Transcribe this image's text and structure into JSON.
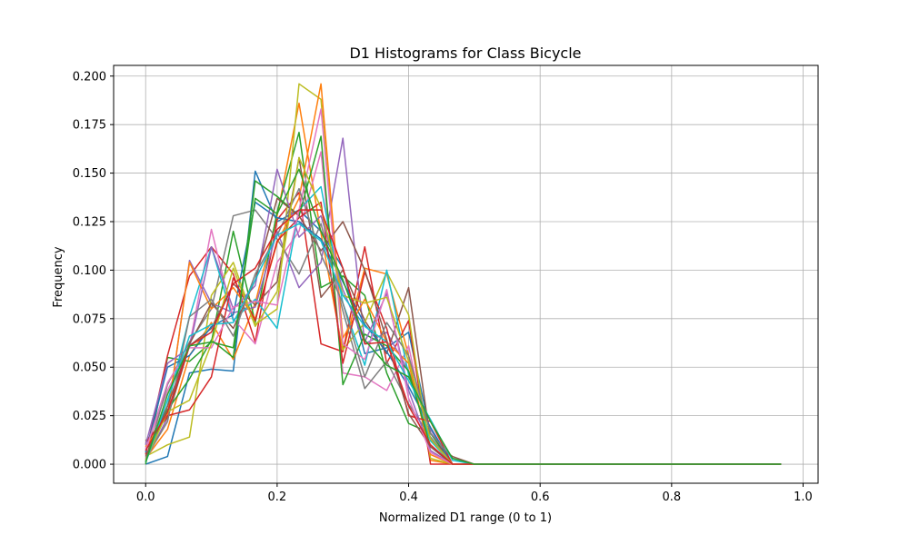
{
  "chart_data": {
    "type": "line",
    "title": "D1 Histograms for Class Bicycle",
    "xlabel": "Normalized D1 range (0 to 1)",
    "ylabel": "Frequency",
    "xlim": [
      -0.0487,
      1.0228
    ],
    "ylim": [
      -0.0098,
      0.2055
    ],
    "grid": true,
    "x_ticks": [
      0.0,
      0.2,
      0.4,
      0.6,
      0.8,
      1.0
    ],
    "x_tick_labels": [
      "0.0",
      "0.2",
      "0.4",
      "0.6",
      "0.8",
      "1.0"
    ],
    "y_ticks": [
      0.0,
      0.025,
      0.05,
      0.075,
      0.1,
      0.125,
      0.15,
      0.175,
      0.2
    ],
    "y_tick_labels": [
      "0.000",
      "0.025",
      "0.050",
      "0.075",
      "0.100",
      "0.125",
      "0.150",
      "0.175",
      "0.200"
    ],
    "x": [
      0.0,
      0.0333,
      0.0667,
      0.1,
      0.1333,
      0.1667,
      0.2,
      0.2333,
      0.2667,
      0.3,
      0.3333,
      0.3667,
      0.4,
      0.4333,
      0.4667,
      0.5,
      0.5333,
      0.5667,
      0.6,
      0.6333,
      0.6667,
      0.7,
      0.7333,
      0.7667,
      0.8,
      0.8333,
      0.8667,
      0.9,
      0.9333,
      0.9667
    ],
    "series": [
      {
        "color": "#1f77b4",
        "values": [
          0.0,
          0.004,
          0.047,
          0.049,
          0.048,
          0.151,
          0.125,
          0.131,
          0.12,
          0.101,
          0.057,
          0.06,
          0.068,
          0.016,
          0.0,
          0.0,
          0.0,
          0.0,
          0.0,
          0.0,
          0.0,
          0.0,
          0.0,
          0.0,
          0.0,
          0.0,
          0.0,
          0.0,
          0.0,
          0.0
        ]
      },
      {
        "color": "#ff7f0e",
        "values": [
          0.003,
          0.018,
          0.056,
          0.073,
          0.054,
          0.083,
          0.128,
          0.186,
          0.119,
          0.058,
          0.101,
          0.098,
          0.056,
          0.002,
          0.0,
          0.0,
          0.0,
          0.0,
          0.0,
          0.0,
          0.0,
          0.0,
          0.0,
          0.0,
          0.0,
          0.0,
          0.0,
          0.0,
          0.0,
          0.0
        ]
      },
      {
        "color": "#2ca02c",
        "values": [
          0.0,
          0.055,
          0.053,
          0.063,
          0.12,
          0.073,
          0.13,
          0.171,
          0.091,
          0.097,
          0.087,
          0.047,
          0.021,
          0.016,
          0.0,
          0.0,
          0.0,
          0.0,
          0.0,
          0.0,
          0.0,
          0.0,
          0.0,
          0.0,
          0.0,
          0.0,
          0.0,
          0.0,
          0.0,
          0.0
        ]
      },
      {
        "color": "#d62728",
        "values": [
          0.005,
          0.056,
          0.097,
          0.112,
          0.098,
          0.063,
          0.126,
          0.14,
          0.062,
          0.058,
          0.112,
          0.052,
          0.074,
          0.0,
          0.0,
          0.0,
          0.0,
          0.0,
          0.0,
          0.0,
          0.0,
          0.0,
          0.0,
          0.0,
          0.0,
          0.0,
          0.0,
          0.0,
          0.0,
          0.0
        ]
      },
      {
        "color": "#9467bd",
        "values": [
          0.002,
          0.024,
          0.105,
          0.083,
          0.078,
          0.081,
          0.12,
          0.091,
          0.104,
          0.168,
          0.062,
          0.068,
          0.048,
          0.018,
          0.0,
          0.0,
          0.0,
          0.0,
          0.0,
          0.0,
          0.0,
          0.0,
          0.0,
          0.0,
          0.0,
          0.0,
          0.0,
          0.0,
          0.0,
          0.0
        ]
      },
      {
        "color": "#8c564b",
        "values": [
          0.012,
          0.024,
          0.061,
          0.07,
          0.093,
          0.082,
          0.094,
          0.158,
          0.086,
          0.1,
          0.074,
          0.057,
          0.091,
          0.012,
          0.004,
          0.0,
          0.0,
          0.0,
          0.0,
          0.0,
          0.0,
          0.0,
          0.0,
          0.0,
          0.0,
          0.0,
          0.0,
          0.0,
          0.0,
          0.0
        ]
      },
      {
        "color": "#e377c2",
        "values": [
          0.008,
          0.038,
          0.061,
          0.121,
          0.075,
          0.062,
          0.104,
          0.12,
          0.161,
          0.047,
          0.045,
          0.038,
          0.061,
          0.007,
          0.0,
          0.0,
          0.0,
          0.0,
          0.0,
          0.0,
          0.0,
          0.0,
          0.0,
          0.0,
          0.0,
          0.0,
          0.0,
          0.0,
          0.0,
          0.0
        ]
      },
      {
        "color": "#7f7f7f",
        "values": [
          0.001,
          0.041,
          0.063,
          0.08,
          0.128,
          0.131,
          0.116,
          0.098,
          0.124,
          0.079,
          0.039,
          0.053,
          0.031,
          0.014,
          0.0,
          0.0,
          0.0,
          0.0,
          0.0,
          0.0,
          0.0,
          0.0,
          0.0,
          0.0,
          0.0,
          0.0,
          0.0,
          0.0,
          0.0,
          0.0
        ]
      },
      {
        "color": "#bcbd22",
        "values": [
          0.004,
          0.01,
          0.014,
          0.087,
          0.104,
          0.072,
          0.08,
          0.196,
          0.188,
          0.059,
          0.073,
          0.099,
          0.077,
          0.003,
          0.0,
          0.0,
          0.0,
          0.0,
          0.0,
          0.0,
          0.0,
          0.0,
          0.0,
          0.0,
          0.0,
          0.0,
          0.0,
          0.0,
          0.0,
          0.0
        ]
      },
      {
        "color": "#17becf",
        "values": [
          0.001,
          0.03,
          0.076,
          0.112,
          0.074,
          0.085,
          0.07,
          0.131,
          0.143,
          0.083,
          0.051,
          0.1,
          0.046,
          0.012,
          0.0,
          0.0,
          0.0,
          0.0,
          0.0,
          0.0,
          0.0,
          0.0,
          0.0,
          0.0,
          0.0,
          0.0,
          0.0,
          0.0,
          0.0,
          0.0
        ]
      },
      {
        "color": "#1f77b4",
        "values": [
          0.006,
          0.05,
          0.056,
          0.071,
          0.077,
          0.135,
          0.127,
          0.125,
          0.116,
          0.094,
          0.072,
          0.058,
          0.04,
          0.019,
          0.0,
          0.0,
          0.0,
          0.0,
          0.0,
          0.0,
          0.0,
          0.0,
          0.0,
          0.0,
          0.0,
          0.0,
          0.0,
          0.0,
          0.0,
          0.0
        ]
      },
      {
        "color": "#ff7f0e",
        "values": [
          0.009,
          0.025,
          0.104,
          0.08,
          0.091,
          0.075,
          0.114,
          0.137,
          0.196,
          0.065,
          0.085,
          0.063,
          0.052,
          0.005,
          0.0,
          0.0,
          0.0,
          0.0,
          0.0,
          0.0,
          0.0,
          0.0,
          0.0,
          0.0,
          0.0,
          0.0,
          0.0,
          0.0,
          0.0,
          0.0
        ]
      },
      {
        "color": "#2ca02c",
        "values": [
          0.002,
          0.028,
          0.044,
          0.064,
          0.055,
          0.146,
          0.138,
          0.128,
          0.169,
          0.041,
          0.067,
          0.061,
          0.048,
          0.009,
          0.0,
          0.0,
          0.0,
          0.0,
          0.0,
          0.0,
          0.0,
          0.0,
          0.0,
          0.0,
          0.0,
          0.0,
          0.0,
          0.0,
          0.0,
          0.0
        ]
      },
      {
        "color": "#d62728",
        "values": [
          0.011,
          0.025,
          0.028,
          0.045,
          0.096,
          0.074,
          0.115,
          0.127,
          0.135,
          0.052,
          0.099,
          0.07,
          0.025,
          0.022,
          0.0,
          0.0,
          0.0,
          0.0,
          0.0,
          0.0,
          0.0,
          0.0,
          0.0,
          0.0,
          0.0,
          0.0,
          0.0,
          0.0,
          0.0,
          0.0
        ]
      },
      {
        "color": "#9467bd",
        "values": [
          0.01,
          0.052,
          0.06,
          0.112,
          0.08,
          0.092,
          0.152,
          0.117,
          0.128,
          0.09,
          0.063,
          0.088,
          0.038,
          0.007,
          0.0,
          0.0,
          0.0,
          0.0,
          0.0,
          0.0,
          0.0,
          0.0,
          0.0,
          0.0,
          0.0,
          0.0,
          0.0,
          0.0,
          0.0,
          0.0
        ]
      },
      {
        "color": "#8c564b",
        "values": [
          0.004,
          0.03,
          0.062,
          0.083,
          0.07,
          0.095,
          0.137,
          0.128,
          0.11,
          0.125,
          0.1,
          0.064,
          0.026,
          0.009,
          0.0,
          0.0,
          0.0,
          0.0,
          0.0,
          0.0,
          0.0,
          0.0,
          0.0,
          0.0,
          0.0,
          0.0,
          0.0,
          0.0,
          0.0,
          0.0
        ]
      },
      {
        "color": "#e377c2",
        "values": [
          0.007,
          0.042,
          0.06,
          0.06,
          0.081,
          0.084,
          0.082,
          0.131,
          0.183,
          0.062,
          0.054,
          0.09,
          0.034,
          0.006,
          0.0,
          0.0,
          0.0,
          0.0,
          0.0,
          0.0,
          0.0,
          0.0,
          0.0,
          0.0,
          0.0,
          0.0,
          0.0,
          0.0,
          0.0,
          0.0
        ]
      },
      {
        "color": "#7f7f7f",
        "values": [
          0.003,
          0.022,
          0.076,
          0.085,
          0.066,
          0.098,
          0.118,
          0.142,
          0.108,
          0.083,
          0.045,
          0.073,
          0.056,
          0.016,
          0.003,
          0.0,
          0.0,
          0.0,
          0.0,
          0.0,
          0.0,
          0.0,
          0.0,
          0.0,
          0.0,
          0.0,
          0.0,
          0.0,
          0.0,
          0.0
        ]
      },
      {
        "color": "#bcbd22",
        "values": [
          0.002,
          0.027,
          0.033,
          0.062,
          0.101,
          0.071,
          0.089,
          0.158,
          0.132,
          0.087,
          0.083,
          0.086,
          0.053,
          0.013,
          0.0,
          0.0,
          0.0,
          0.0,
          0.0,
          0.0,
          0.0,
          0.0,
          0.0,
          0.0,
          0.0,
          0.0,
          0.0,
          0.0,
          0.0,
          0.0
        ]
      },
      {
        "color": "#17becf",
        "values": [
          0.001,
          0.033,
          0.066,
          0.072,
          0.073,
          0.095,
          0.118,
          0.124,
          0.115,
          0.087,
          0.071,
          0.063,
          0.043,
          0.023,
          0.002,
          0.0,
          0.0,
          0.0,
          0.0,
          0.0,
          0.0,
          0.0,
          0.0,
          0.0,
          0.0,
          0.0,
          0.0,
          0.0,
          0.0,
          0.0
        ]
      },
      {
        "color": "#d62728",
        "values": [
          0.007,
          0.027,
          0.061,
          0.068,
          0.093,
          0.101,
          0.121,
          0.131,
          0.131,
          0.101,
          0.062,
          0.063,
          0.03,
          0.01,
          0.0,
          0.0,
          0.0,
          0.0,
          0.0,
          0.0,
          0.0,
          0.0,
          0.0,
          0.0,
          0.0,
          0.0,
          0.0,
          0.0,
          0.0,
          0.0
        ]
      },
      {
        "color": "#2ca02c",
        "values": [
          0.001,
          0.036,
          0.061,
          0.063,
          0.06,
          0.137,
          0.129,
          0.152,
          0.12,
          0.095,
          0.064,
          0.051,
          0.045,
          0.022,
          0.003,
          0.0,
          0.0,
          0.0,
          0.0,
          0.0,
          0.0,
          0.0,
          0.0,
          0.0,
          0.0,
          0.0,
          0.0,
          0.0,
          0.0,
          0.0
        ]
      }
    ]
  }
}
